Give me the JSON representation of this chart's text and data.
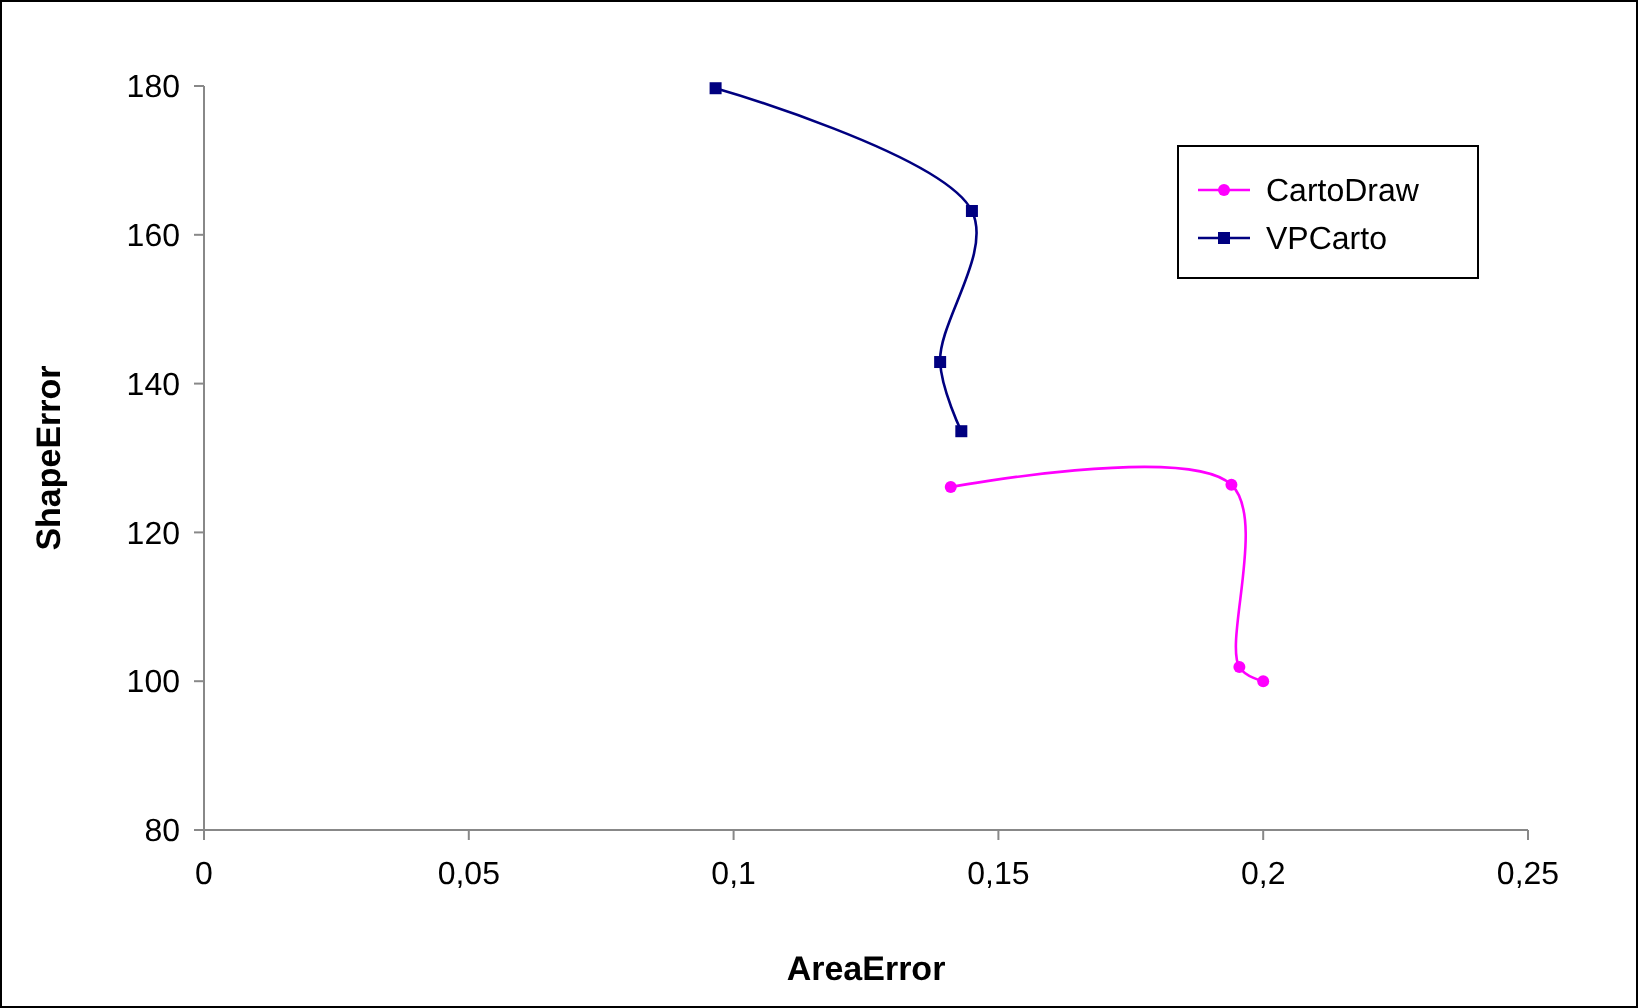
{
  "chart_data": {
    "type": "line",
    "xlabel": "AreaError",
    "ylabel": "ShapeError",
    "xlim": [
      0,
      0.25
    ],
    "xticks": [
      {
        "value": 0,
        "label": "0"
      },
      {
        "value": 0.05,
        "label": "0,05"
      },
      {
        "value": 0.1,
        "label": "0,1"
      },
      {
        "value": 0.15,
        "label": "0,15"
      },
      {
        "value": 0.2,
        "label": "0,2"
      },
      {
        "value": 0.25,
        "label": "0,25"
      }
    ],
    "ylim": [
      80,
      180
    ],
    "yticks": [
      80,
      100,
      120,
      140,
      160,
      180
    ],
    "grid": false,
    "legend": "top right",
    "series": [
      {
        "name": "CartoDraw",
        "color": "#ff00ff",
        "marker": "circle",
        "x": [
          0.141,
          0.194,
          0.1955,
          0.2
        ],
        "values": [
          126.1,
          126.4,
          101.9,
          100
        ]
      },
      {
        "name": "VPCarto",
        "color": "#000080",
        "marker": "square",
        "x": [
          0.0966,
          0.145,
          0.139,
          0.143
        ],
        "values": [
          179.7,
          163.2,
          142.9,
          133.6
        ]
      }
    ]
  }
}
